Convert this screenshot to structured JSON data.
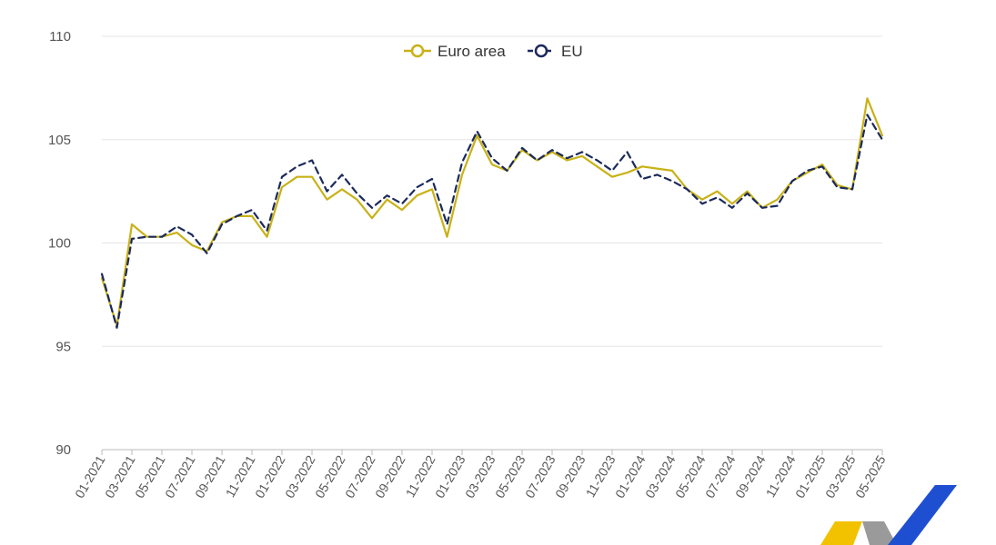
{
  "chart_data": {
    "type": "line",
    "title": "",
    "xlabel": "",
    "ylabel": "",
    "ylim": [
      90,
      110
    ],
    "yticks": [
      90,
      95,
      100,
      105,
      110
    ],
    "grid": true,
    "legend_position": "top-center",
    "x": [
      "01-2021",
      "02-2021",
      "03-2021",
      "04-2021",
      "05-2021",
      "06-2021",
      "07-2021",
      "08-2021",
      "09-2021",
      "10-2021",
      "11-2021",
      "12-2021",
      "01-2022",
      "02-2022",
      "03-2022",
      "04-2022",
      "05-2022",
      "06-2022",
      "07-2022",
      "08-2022",
      "09-2022",
      "10-2022",
      "11-2022",
      "12-2022",
      "01-2023",
      "02-2023",
      "03-2023",
      "04-2023",
      "05-2023",
      "06-2023",
      "07-2023",
      "08-2023",
      "09-2023",
      "10-2023",
      "11-2023",
      "12-2023",
      "01-2024",
      "02-2024",
      "03-2024",
      "04-2024",
      "05-2024",
      "06-2024",
      "07-2024",
      "08-2024",
      "09-2024",
      "10-2024",
      "11-2024",
      "12-2024",
      "01-2025",
      "02-2025",
      "03-2025",
      "04-2025",
      "05-2025"
    ],
    "x_tick_labels": [
      "01-2021",
      "03-2021",
      "05-2021",
      "07-2021",
      "09-2021",
      "11-2021",
      "01-2022",
      "03-2022",
      "05-2022",
      "07-2022",
      "09-2022",
      "11-2022",
      "01-2023",
      "03-2023",
      "05-2023",
      "07-2023",
      "09-2023",
      "11-2023",
      "01-2024",
      "03-2024",
      "05-2024",
      "07-2024",
      "09-2024",
      "11-2024",
      "01-2025",
      "03-2025",
      "05-2025"
    ],
    "series": [
      {
        "name": "Euro area",
        "color": "#c9b116",
        "style": "solid",
        "values": [
          98.3,
          96.0,
          100.9,
          100.3,
          100.3,
          100.5,
          99.9,
          99.6,
          101.0,
          101.3,
          101.3,
          100.3,
          102.7,
          103.2,
          103.2,
          102.1,
          102.6,
          102.1,
          101.2,
          102.1,
          101.6,
          102.3,
          102.6,
          100.3,
          103.3,
          105.2,
          103.8,
          103.5,
          104.5,
          104.0,
          104.4,
          104.0,
          104.2,
          103.7,
          103.2,
          103.4,
          103.7,
          103.6,
          103.5,
          102.6,
          102.1,
          102.5,
          101.9,
          102.5,
          101.7,
          102.1,
          103.0,
          103.4,
          103.8,
          102.8,
          102.6,
          107.0,
          105.2
        ]
      },
      {
        "name": "EU",
        "color": "#1b2a5c",
        "style": "dashed",
        "values": [
          98.5,
          95.9,
          100.2,
          100.3,
          100.3,
          100.8,
          100.4,
          99.5,
          100.9,
          101.3,
          101.6,
          100.6,
          103.2,
          103.7,
          104.0,
          102.5,
          103.3,
          102.4,
          101.7,
          102.3,
          101.9,
          102.7,
          103.1,
          100.9,
          103.9,
          105.4,
          104.1,
          103.5,
          104.6,
          104.0,
          104.5,
          104.1,
          104.4,
          104.0,
          103.5,
          104.4,
          103.1,
          103.3,
          103.0,
          102.6,
          101.9,
          102.2,
          101.7,
          102.4,
          101.7,
          101.8,
          103.0,
          103.5,
          103.7,
          102.7,
          102.6,
          106.2,
          105.0
        ]
      }
    ]
  }
}
